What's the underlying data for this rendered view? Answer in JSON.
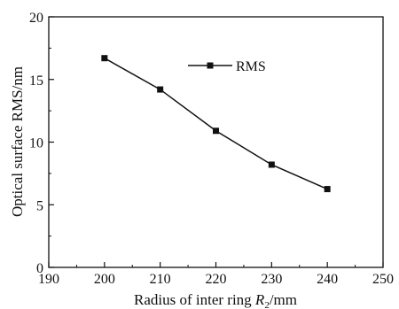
{
  "chart_data": {
    "type": "line",
    "title": "",
    "xlabel_main": "Radius of inter ring ",
    "xlabel_var": "R",
    "xlabel_sub": "2",
    "xlabel_unit": "/mm",
    "ylabel": "Optical surface RMS/nm",
    "xlim": [
      190,
      250
    ],
    "ylim": [
      0,
      20
    ],
    "xticks": [
      190,
      200,
      210,
      220,
      230,
      240,
      250
    ],
    "yticks": [
      0,
      5,
      10,
      15,
      20
    ],
    "grid": false,
    "legend_position": "top-right",
    "series": [
      {
        "name": "RMS",
        "color": "#111111",
        "marker": "square",
        "x": [
          200,
          210,
          220,
          230,
          240
        ],
        "y": [
          16.7,
          14.2,
          10.9,
          8.2,
          6.25
        ]
      }
    ]
  }
}
